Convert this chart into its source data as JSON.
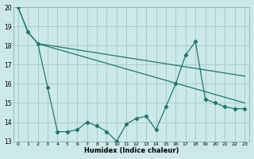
{
  "xlabel": "Humidex (Indice chaleur)",
  "bg_color": "#cce8e8",
  "grid_color": "#aacccc",
  "line_color": "#1a7a6e",
  "xlim": [
    -0.5,
    23.5
  ],
  "ylim": [
    13,
    20
  ],
  "yticks": [
    13,
    14,
    15,
    16,
    17,
    18,
    19,
    20
  ],
  "xticks": [
    0,
    1,
    2,
    3,
    4,
    5,
    6,
    7,
    8,
    9,
    10,
    11,
    12,
    13,
    14,
    15,
    16,
    17,
    18,
    19,
    20,
    21,
    22,
    23
  ],
  "series1_x": [
    0,
    1,
    2,
    23
  ],
  "series1_y": [
    20.0,
    18.7,
    18.1,
    16.4
  ],
  "series2_x": [
    2,
    23
  ],
  "series2_y": [
    18.1,
    15.0
  ],
  "series3_x": [
    0,
    1,
    2,
    3,
    4,
    5,
    6,
    7,
    8,
    9,
    10,
    11,
    12,
    13,
    14,
    15,
    16,
    17,
    18,
    19,
    20,
    21,
    22,
    23
  ],
  "series3_y": [
    20.0,
    18.7,
    18.1,
    15.8,
    13.5,
    13.5,
    13.6,
    14.0,
    13.8,
    13.5,
    13.0,
    13.9,
    14.2,
    14.3,
    13.6,
    14.8,
    16.0,
    17.5,
    18.2,
    15.2,
    15.0,
    14.8,
    14.7,
    14.7
  ]
}
